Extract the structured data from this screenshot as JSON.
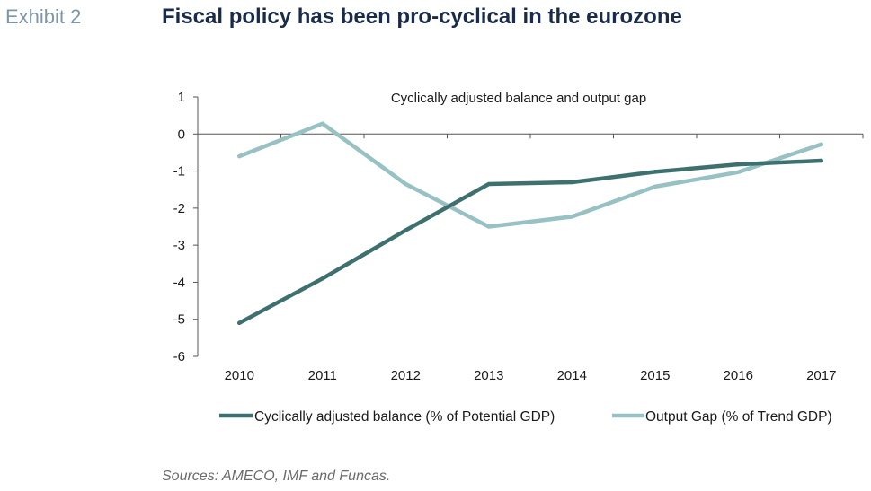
{
  "header": {
    "exhibit_label": "Exhibit 2",
    "title": "Fiscal policy has been pro-cyclical in the eurozone"
  },
  "footer": {
    "source": "Sources: AMECO, IMF and Funcas."
  },
  "chart_data": {
    "type": "line",
    "title": "Cyclically adjusted balance and output gap",
    "xlabel": "",
    "ylabel": "",
    "categories": [
      "2010",
      "2011",
      "2012",
      "2013",
      "2014",
      "2015",
      "2016",
      "2017"
    ],
    "ylim": [
      -6,
      1
    ],
    "yticks": [
      1,
      0,
      -1,
      -2,
      -3,
      -4,
      -5,
      -6
    ],
    "grid": false,
    "legend_position": "bottom",
    "series": [
      {
        "name": "Cyclically adjusted balance (% of Potential GDP)",
        "color": "#3e7070",
        "values": [
          -5.1,
          -3.9,
          -2.6,
          -1.35,
          -1.3,
          -1.02,
          -0.82,
          -0.72
        ]
      },
      {
        "name": "Output Gap (% of Trend GDP)",
        "color": "#97c1c3",
        "values": [
          -0.6,
          0.28,
          -1.35,
          -2.5,
          -2.23,
          -1.42,
          -1.03,
          -0.28
        ]
      }
    ]
  }
}
